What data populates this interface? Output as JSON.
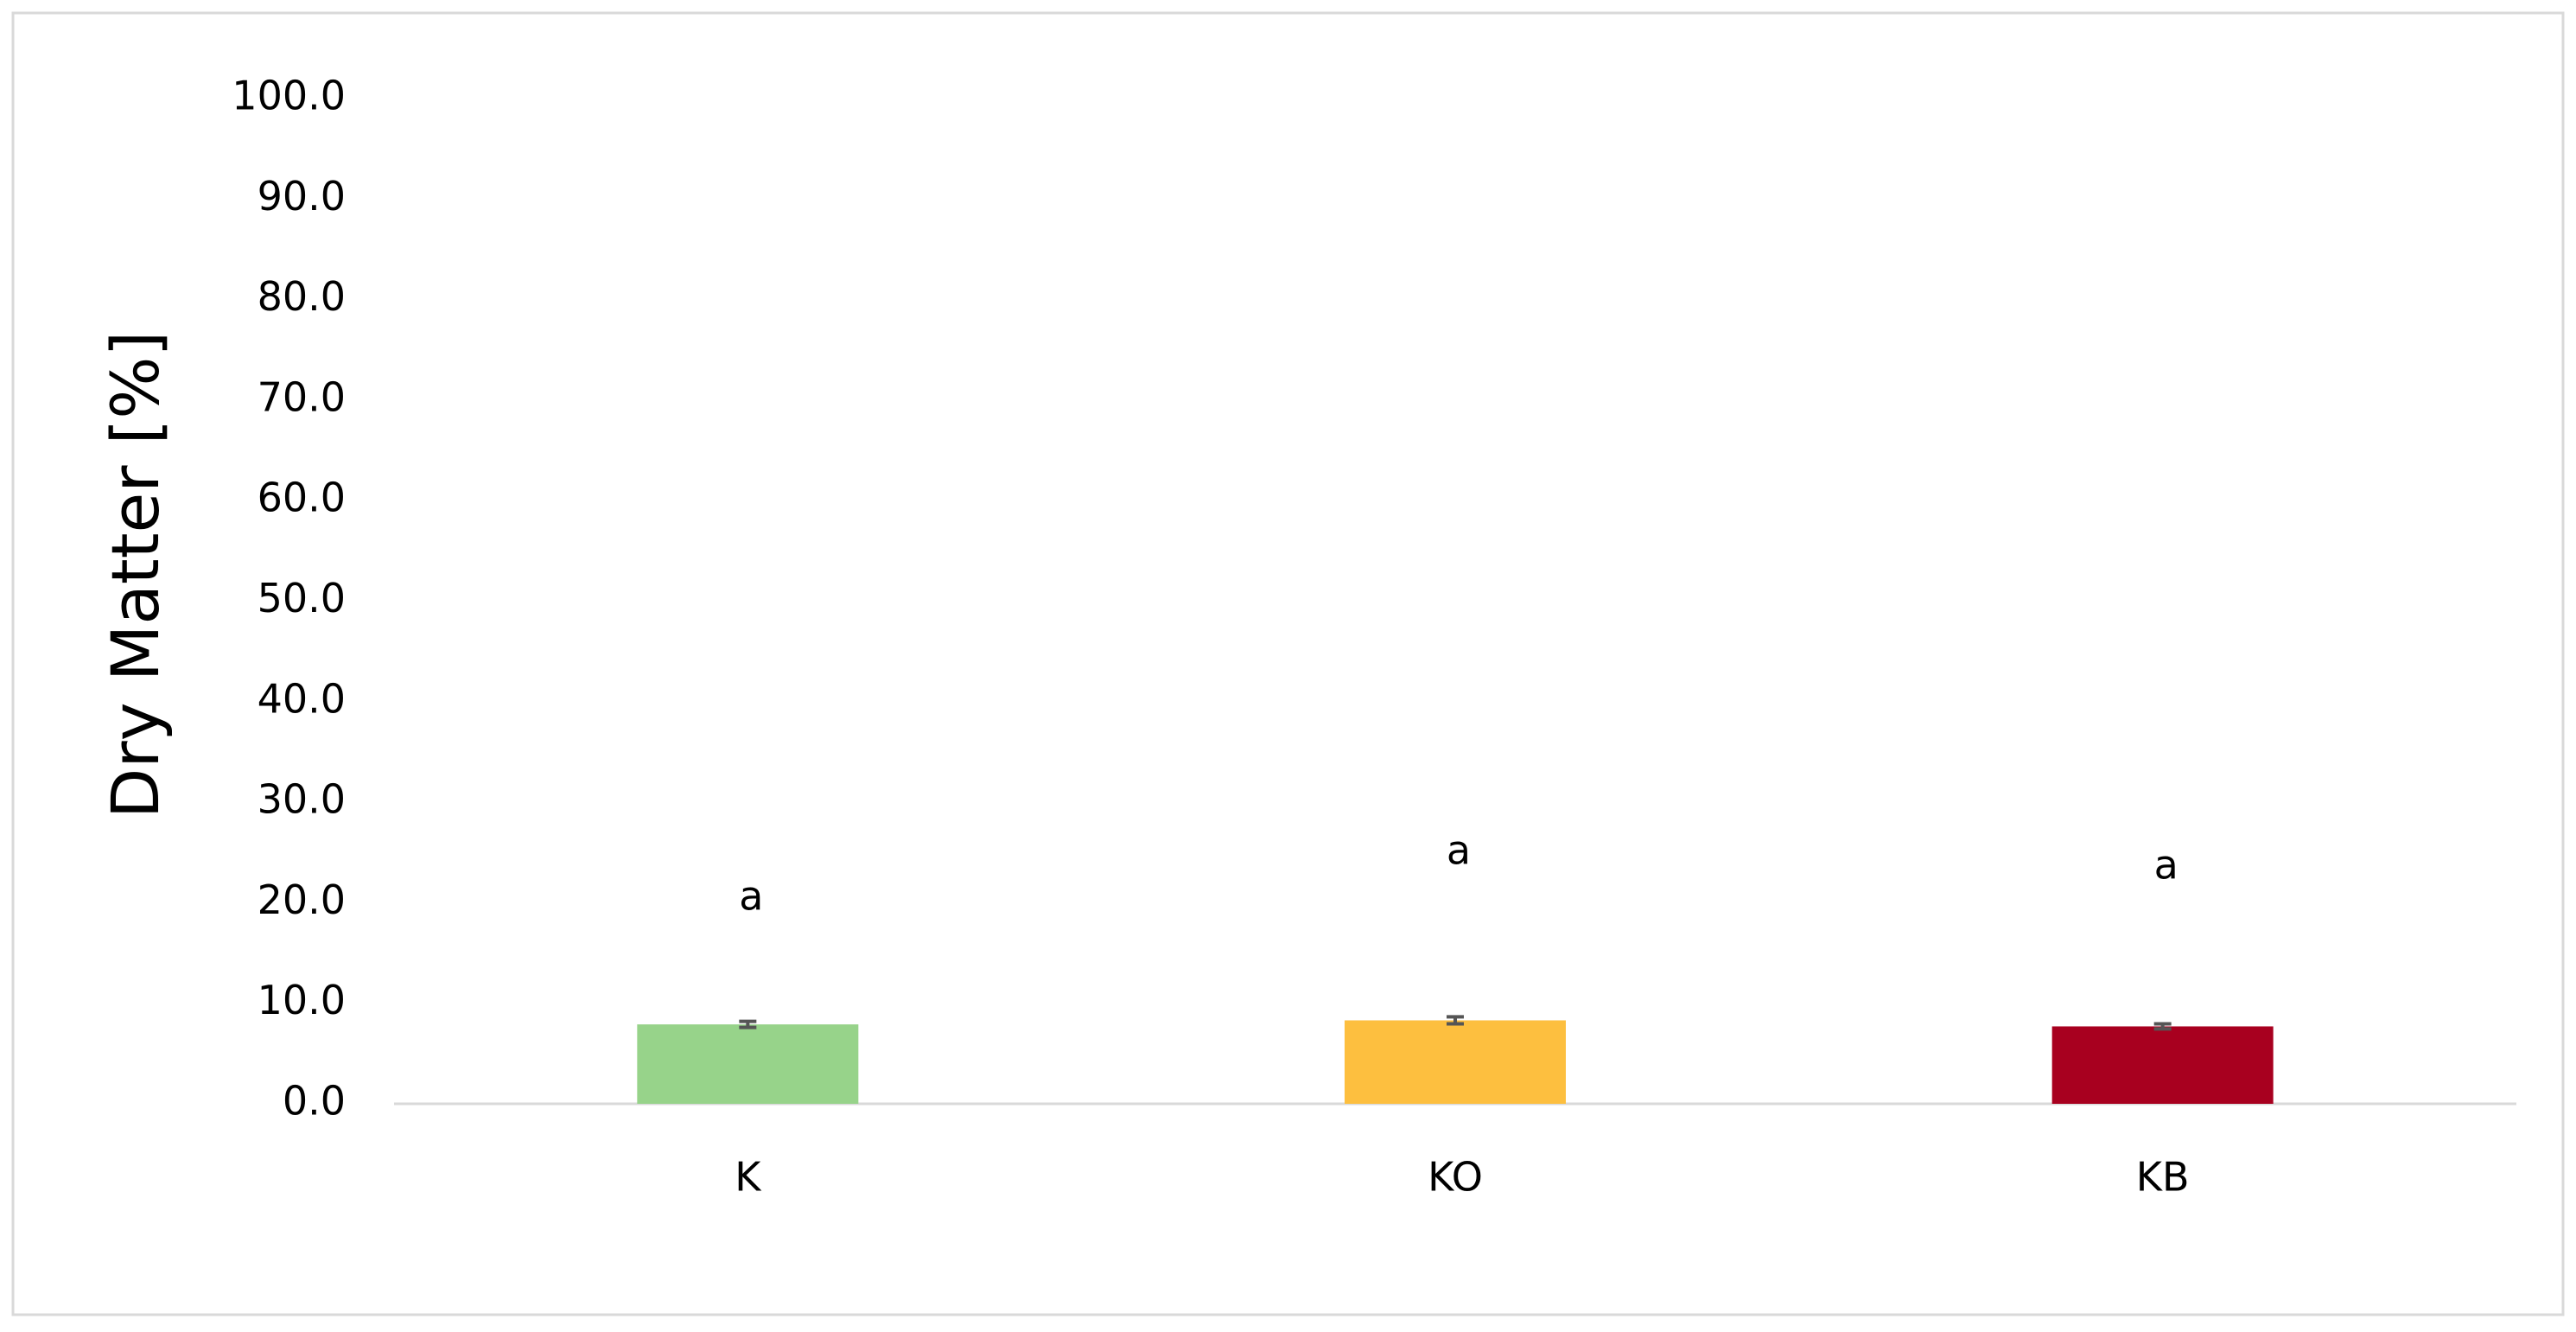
{
  "chart_data": {
    "type": "bar",
    "y_label": "Dry Matter  [%]",
    "categories": [
      "K",
      "KO",
      "KB"
    ],
    "values": [
      7.9,
      8.3,
      7.7
    ],
    "errors": [
      0.3,
      0.35,
      0.25
    ],
    "colors": [
      "#97d38a",
      "#fdbf3f",
      "#a8001f"
    ],
    "annotations": [
      "a",
      "a",
      "a"
    ],
    "ylim": [
      0,
      100
    ],
    "yticks": [
      {
        "value": 0,
        "label": "0.0"
      },
      {
        "value": 10,
        "label": "10.0"
      },
      {
        "value": 20,
        "label": "20.0"
      },
      {
        "value": 30,
        "label": "30.0"
      },
      {
        "value": 40,
        "label": "40.0"
      },
      {
        "value": 50,
        "label": "50.0"
      },
      {
        "value": 60,
        "label": "60.0"
      },
      {
        "value": 70,
        "label": "70.0"
      },
      {
        "value": 80,
        "label": "80.0"
      },
      {
        "value": 90,
        "label": "90.0"
      },
      {
        "value": 100,
        "label": "100.0"
      }
    ],
    "grid": false
  }
}
